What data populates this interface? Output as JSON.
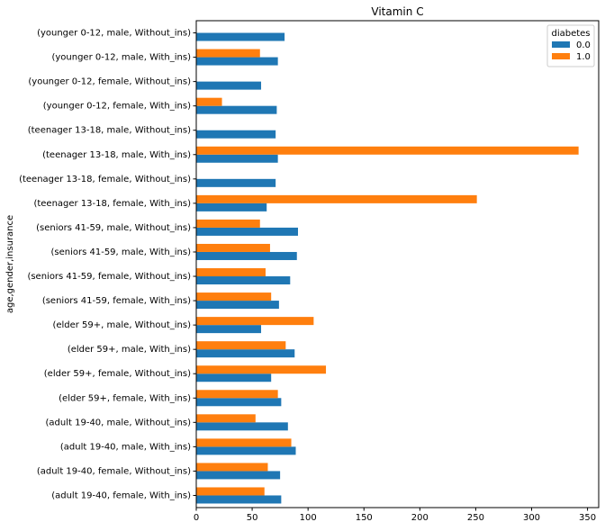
{
  "chart_data": {
    "type": "bar",
    "orientation": "horizontal",
    "title": "Vitamin C",
    "xlabel": "",
    "ylabel": "age,gender,insurance",
    "xlim": [
      0,
      360
    ],
    "xticks": [
      0,
      50,
      100,
      150,
      200,
      250,
      300,
      350
    ],
    "grid": false,
    "legend": {
      "title": "diabetes",
      "position": "top-right"
    },
    "categories": [
      "(younger 0-12, male, Without_ins)",
      "(younger 0-12, male, With_ins)",
      "(younger 0-12, female, Without_ins)",
      "(younger 0-12, female, With_ins)",
      "(teenager 13-18, male, Without_ins)",
      "(teenager 13-18, male, With_ins)",
      "(teenager 13-18, female, Without_ins)",
      "(teenager 13-18, female, With_ins)",
      "(seniors 41-59, male, Without_ins)",
      "(seniors 41-59, male, With_ins)",
      "(seniors 41-59, female, Without_ins)",
      "(seniors 41-59, female, With_ins)",
      "(elder 59+, male, Without_ins)",
      "(elder 59+, male, With_ins)",
      "(elder 59+, female, Without_ins)",
      "(elder 59+, female, With_ins)",
      "(adult 19-40, male, Without_ins)",
      "(adult 19-40, male, With_ins)",
      "(adult 19-40, female, Without_ins)",
      "(adult 19-40, female, With_ins)"
    ],
    "series": [
      {
        "name": "0.0",
        "color": "#1f77b4",
        "values": [
          79,
          73,
          58,
          72,
          71,
          73,
          71,
          63,
          91,
          90,
          84,
          74,
          58,
          88,
          67,
          76,
          82,
          89,
          75,
          76
        ]
      },
      {
        "name": "1.0",
        "color": "#ff7f0e",
        "values": [
          null,
          57,
          null,
          23,
          null,
          342,
          null,
          251,
          57,
          66,
          62,
          67,
          105,
          80,
          116,
          73,
          53,
          85,
          64,
          61
        ]
      }
    ]
  }
}
